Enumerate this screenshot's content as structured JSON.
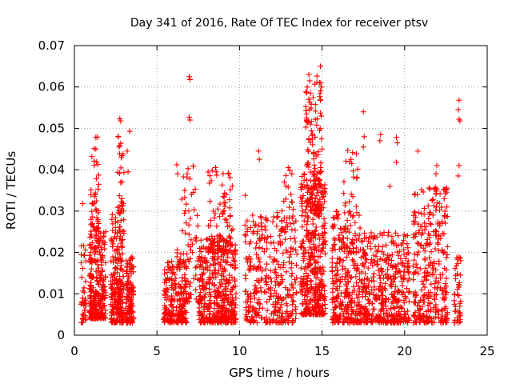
{
  "chart_data": {
    "type": "scatter",
    "title": "Day 341 of 2016, Rate Of TEC Index for receiver ptsv",
    "xlabel": "GPS time / hours",
    "ylabel": "ROTI / TECUs",
    "xlim": [
      0,
      25
    ],
    "ylim": [
      0,
      0.07
    ],
    "x_ticks": [
      "0",
      "5",
      "10",
      "15",
      "20",
      "25"
    ],
    "y_ticks": [
      "0",
      "0.01",
      "0.02",
      "0.03",
      "0.04",
      "0.05",
      "0.06",
      "0.07"
    ],
    "grid": true,
    "legend": "none",
    "marker": "plus",
    "color": "#ff0000",
    "clusters": [
      {
        "x": [
          0.4,
          0.7
        ],
        "y": [
          0.003,
          0.022
        ],
        "n": 40
      },
      {
        "x": [
          0.9,
          1.9
        ],
        "y": [
          0.004,
          0.025
        ],
        "n": 260
      },
      {
        "x": [
          1.0,
          1.5
        ],
        "y": [
          0.025,
          0.048
        ],
        "n": 45
      },
      {
        "x": [
          2.2,
          3.0
        ],
        "y": [
          0.003,
          0.03
        ],
        "n": 230
      },
      {
        "x": [
          2.6,
          3.0
        ],
        "y": [
          0.03,
          0.052
        ],
        "n": 28
      },
      {
        "x": [
          3.1,
          3.6
        ],
        "y": [
          0.003,
          0.019
        ],
        "n": 120
      },
      {
        "x": [
          5.4,
          6.8
        ],
        "y": [
          0.003,
          0.018
        ],
        "n": 210
      },
      {
        "x": [
          6.2,
          7.5
        ],
        "y": [
          0.008,
          0.041
        ],
        "n": 90
      },
      {
        "x": [
          7.5,
          9.8
        ],
        "y": [
          0.003,
          0.024
        ],
        "n": 430
      },
      {
        "x": [
          8.0,
          9.6
        ],
        "y": [
          0.02,
          0.04
        ],
        "n": 85
      },
      {
        "x": [
          10.3,
          11.4
        ],
        "y": [
          0.003,
          0.03
        ],
        "n": 130
      },
      {
        "x": [
          11.5,
          13.5
        ],
        "y": [
          0.003,
          0.03
        ],
        "n": 210
      },
      {
        "x": [
          12.5,
          13.3
        ],
        "y": [
          0.025,
          0.04
        ],
        "n": 30
      },
      {
        "x": [
          13.7,
          15.2
        ],
        "y": [
          0.005,
          0.041
        ],
        "n": 420
      },
      {
        "x": [
          14.0,
          15.0
        ],
        "y": [
          0.03,
          0.063
        ],
        "n": 110
      },
      {
        "x": [
          15.6,
          17.0
        ],
        "y": [
          0.003,
          0.03
        ],
        "n": 230
      },
      {
        "x": [
          16.2,
          17.3
        ],
        "y": [
          0.02,
          0.045
        ],
        "n": 40
      },
      {
        "x": [
          17.0,
          18.5
        ],
        "y": [
          0.003,
          0.025
        ],
        "n": 200
      },
      {
        "x": [
          18.5,
          20.3
        ],
        "y": [
          0.003,
          0.025
        ],
        "n": 260
      },
      {
        "x": [
          20.5,
          22.6
        ],
        "y": [
          0.003,
          0.036
        ],
        "n": 320
      },
      {
        "x": [
          23.0,
          23.4
        ],
        "y": [
          0.003,
          0.02
        ],
        "n": 45
      }
    ],
    "points": [
      {
        "x": 0.5,
        "y": 0.0318
      },
      {
        "x": 1.3,
        "y": 0.0478
      },
      {
        "x": 1.2,
        "y": 0.0421
      },
      {
        "x": 1.3,
        "y": 0.045
      },
      {
        "x": 2.75,
        "y": 0.0523
      },
      {
        "x": 2.8,
        "y": 0.0518
      },
      {
        "x": 2.7,
        "y": 0.0455
      },
      {
        "x": 3.35,
        "y": 0.0493
      },
      {
        "x": 3.2,
        "y": 0.0445
      },
      {
        "x": 3.25,
        "y": 0.0395
      },
      {
        "x": 6.2,
        "y": 0.0412
      },
      {
        "x": 6.25,
        "y": 0.039
      },
      {
        "x": 6.95,
        "y": 0.0625
      },
      {
        "x": 7.0,
        "y": 0.0618
      },
      {
        "x": 6.95,
        "y": 0.0527
      },
      {
        "x": 7.0,
        "y": 0.052
      },
      {
        "x": 8.55,
        "y": 0.0405
      },
      {
        "x": 9.35,
        "y": 0.039
      },
      {
        "x": 10.35,
        "y": 0.0338
      },
      {
        "x": 11.15,
        "y": 0.0445
      },
      {
        "x": 11.2,
        "y": 0.0425
      },
      {
        "x": 12.95,
        "y": 0.0405
      },
      {
        "x": 14.2,
        "y": 0.063
      },
      {
        "x": 14.25,
        "y": 0.0615
      },
      {
        "x": 14.3,
        "y": 0.0585
      },
      {
        "x": 14.2,
        "y": 0.057
      },
      {
        "x": 14.25,
        "y": 0.0545
      },
      {
        "x": 14.3,
        "y": 0.051
      },
      {
        "x": 14.2,
        "y": 0.0475
      },
      {
        "x": 14.9,
        "y": 0.065
      },
      {
        "x": 14.85,
        "y": 0.061
      },
      {
        "x": 14.95,
        "y": 0.06
      },
      {
        "x": 14.9,
        "y": 0.057
      },
      {
        "x": 14.95,
        "y": 0.053
      },
      {
        "x": 14.85,
        "y": 0.0495
      },
      {
        "x": 15.0,
        "y": 0.045
      },
      {
        "x": 16.75,
        "y": 0.0425
      },
      {
        "x": 16.8,
        "y": 0.0415
      },
      {
        "x": 17.5,
        "y": 0.054
      },
      {
        "x": 17.55,
        "y": 0.048
      },
      {
        "x": 17.5,
        "y": 0.0455
      },
      {
        "x": 18.55,
        "y": 0.0485
      },
      {
        "x": 18.5,
        "y": 0.047
      },
      {
        "x": 19.5,
        "y": 0.0478
      },
      {
        "x": 19.55,
        "y": 0.0465
      },
      {
        "x": 19.5,
        "y": 0.0418
      },
      {
        "x": 19.1,
        "y": 0.036
      },
      {
        "x": 20.8,
        "y": 0.0445
      },
      {
        "x": 21.95,
        "y": 0.041
      },
      {
        "x": 21.9,
        "y": 0.039
      },
      {
        "x": 21.85,
        "y": 0.0355
      },
      {
        "x": 23.3,
        "y": 0.0568
      },
      {
        "x": 23.25,
        "y": 0.0545
      },
      {
        "x": 23.3,
        "y": 0.0522
      },
      {
        "x": 23.35,
        "y": 0.0518
      },
      {
        "x": 23.3,
        "y": 0.041
      },
      {
        "x": 23.25,
        "y": 0.0385
      }
    ]
  }
}
